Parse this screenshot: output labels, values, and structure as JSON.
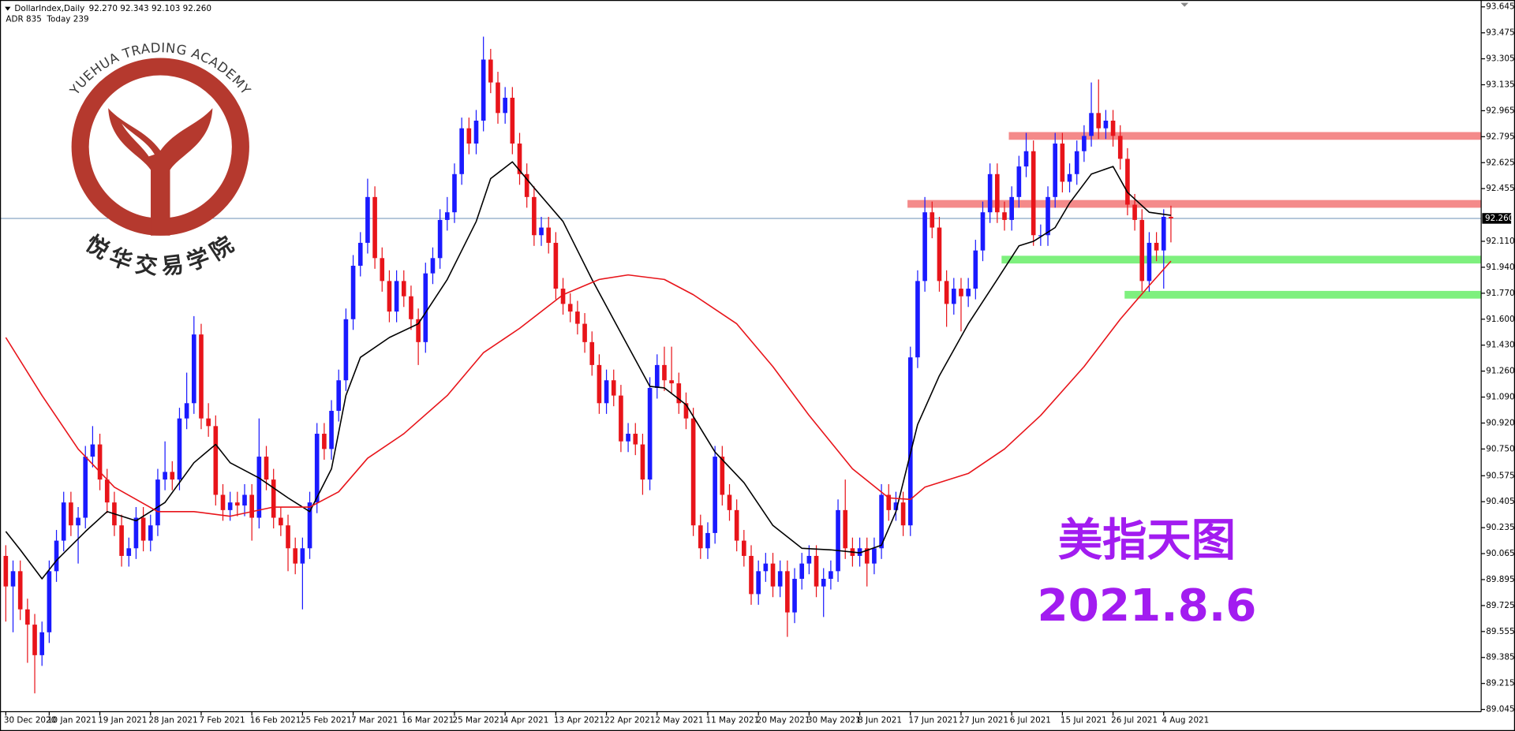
{
  "chart_data": {
    "type": "candlestick",
    "title": "DollarIndex,Daily",
    "ohlc_text": "92.270 92.343 92.103 92.260",
    "indicator_text": "ADR 835  Today 239",
    "annotations": [
      "美指天图",
      "2021.8.6"
    ],
    "bull_color": "#1a1aff",
    "bear_color": "#e8141a",
    "grid": false,
    "ylim": [
      89.03,
      93.69
    ],
    "yticks": [
      93.645,
      93.475,
      93.305,
      93.135,
      92.965,
      92.795,
      92.625,
      92.455,
      {
        "value": 92.11,
        "label": "92.110"
      },
      {
        "value": 91.94,
        "label": "91.940"
      },
      {
        "value": 91.77,
        "label": "91.770"
      },
      {
        "value": 91.6,
        "label": "91.600"
      },
      {
        "value": 91.43,
        "label": "91.430"
      },
      {
        "value": 91.26,
        "label": "91.260"
      },
      {
        "value": 91.09,
        "label": "91.090"
      },
      {
        "value": 90.92,
        "label": "90.920"
      },
      {
        "value": 90.75,
        "label": "90.750"
      },
      90.575,
      90.405,
      90.235,
      90.065,
      89.895,
      89.725,
      89.555,
      89.385,
      89.215,
      89.045
    ],
    "current_price": {
      "value": 92.26,
      "label": "92.260",
      "color": "#6b8fb5"
    },
    "categories": [
      "30 Dec 2020",
      null,
      null,
      null,
      null,
      null,
      "10 Jan 2021",
      null,
      null,
      null,
      null,
      null,
      null,
      "19 Jan 2021",
      null,
      null,
      null,
      null,
      null,
      null,
      "28 Jan 2021",
      null,
      null,
      null,
      null,
      null,
      null,
      "7 Feb 2021",
      null,
      null,
      null,
      null,
      null,
      null,
      "16 Feb 2021",
      null,
      null,
      null,
      null,
      null,
      null,
      "25 Feb 2021",
      null,
      null,
      null,
      null,
      null,
      null,
      "7 Mar 2021",
      null,
      null,
      null,
      null,
      null,
      null,
      "16 Mar 2021",
      null,
      null,
      null,
      null,
      null,
      null,
      "25 Mar 2021",
      null,
      null,
      null,
      null,
      null,
      null,
      "4 Apr 2021",
      null,
      null,
      null,
      null,
      null,
      null,
      "13 Apr 2021",
      null,
      null,
      null,
      null,
      null,
      null,
      "22 Apr 2021",
      null,
      null,
      null,
      null,
      null,
      null,
      "2 May 2021",
      null,
      null,
      null,
      null,
      null,
      null,
      "11 May 2021",
      null,
      null,
      null,
      null,
      null,
      null,
      "20 May 2021",
      null,
      null,
      null,
      null,
      null,
      null,
      "30 May 2021",
      null,
      null,
      null,
      null,
      null,
      null,
      "8 Jun 2021",
      null,
      null,
      null,
      null,
      null,
      null,
      "17 Jun 2021",
      null,
      null,
      null,
      null,
      null,
      null,
      "27 Jun 2021",
      null,
      null,
      null,
      null,
      null,
      null,
      "6 Jul 2021",
      null,
      null,
      null,
      null,
      null,
      null,
      "15 Jul 2021",
      null,
      null,
      null,
      null,
      null,
      null,
      "26 Jul 2021",
      null,
      null,
      null,
      null,
      null,
      null,
      "4 Aug 2021",
      null
    ],
    "candles": [
      [
        90.05,
        90.12,
        89.62,
        89.85
      ],
      [
        89.85,
        90.02,
        89.55,
        89.95
      ],
      [
        89.95,
        90.02,
        89.63,
        89.7
      ],
      [
        89.7,
        89.77,
        89.35,
        89.6
      ],
      [
        89.6,
        89.67,
        89.15,
        89.4
      ],
      [
        89.4,
        89.62,
        89.33,
        89.55
      ],
      [
        89.55,
        90.02,
        89.48,
        89.95
      ],
      [
        89.95,
        90.22,
        89.88,
        90.15
      ],
      [
        90.15,
        90.47,
        90.08,
        90.4
      ],
      [
        90.4,
        90.47,
        90.18,
        90.25
      ],
      [
        90.25,
        90.37,
        90.0,
        90.3
      ],
      [
        90.3,
        90.77,
        90.23,
        90.7
      ],
      [
        90.7,
        90.9,
        90.63,
        90.78
      ],
      [
        90.78,
        90.85,
        90.48,
        90.55
      ],
      [
        90.55,
        90.62,
        90.33,
        90.4
      ],
      [
        90.4,
        90.47,
        90.18,
        90.25
      ],
      [
        90.25,
        90.32,
        89.98,
        90.05
      ],
      [
        90.05,
        90.17,
        89.98,
        90.1
      ],
      [
        90.1,
        90.37,
        90.03,
        90.3
      ],
      [
        90.3,
        90.37,
        90.08,
        90.15
      ],
      [
        90.15,
        90.32,
        90.08,
        90.25
      ],
      [
        90.25,
        90.62,
        90.18,
        90.55
      ],
      [
        90.55,
        90.8,
        90.48,
        90.6
      ],
      [
        90.6,
        90.67,
        90.48,
        90.55
      ],
      [
        90.55,
        91.02,
        90.48,
        90.95
      ],
      [
        90.95,
        91.25,
        90.88,
        91.05
      ],
      [
        91.05,
        91.62,
        90.98,
        91.5
      ],
      [
        91.5,
        91.57,
        90.88,
        90.95
      ],
      [
        90.95,
        91.05,
        90.83,
        90.9
      ],
      [
        90.9,
        90.97,
        90.38,
        90.45
      ],
      [
        90.45,
        90.52,
        90.28,
        90.35
      ],
      [
        90.35,
        90.47,
        90.28,
        90.4
      ],
      [
        90.4,
        90.47,
        90.31,
        90.38
      ],
      [
        90.38,
        90.52,
        90.31,
        90.45
      ],
      [
        90.45,
        90.52,
        90.15,
        90.3
      ],
      [
        90.3,
        90.95,
        90.23,
        90.7
      ],
      [
        90.7,
        90.77,
        90.48,
        90.55
      ],
      [
        90.55,
        90.62,
        90.23,
        90.3
      ],
      [
        90.3,
        90.37,
        90.18,
        90.25
      ],
      [
        90.25,
        90.32,
        89.95,
        90.1
      ],
      [
        90.1,
        90.17,
        89.93,
        90.0
      ],
      [
        90.0,
        90.17,
        89.7,
        90.1
      ],
      [
        90.1,
        90.47,
        90.03,
        90.4
      ],
      [
        90.4,
        90.92,
        90.33,
        90.85
      ],
      [
        90.85,
        90.92,
        90.68,
        90.75
      ],
      [
        90.75,
        91.07,
        90.68,
        91.0
      ],
      [
        91.0,
        91.27,
        90.93,
        91.2
      ],
      [
        91.2,
        91.67,
        91.13,
        91.6
      ],
      [
        91.6,
        92.02,
        91.53,
        91.95
      ],
      [
        91.95,
        92.17,
        91.88,
        92.1
      ],
      [
        92.1,
        92.52,
        92.03,
        92.4
      ],
      [
        92.4,
        92.47,
        91.93,
        92.0
      ],
      [
        92.0,
        92.07,
        91.78,
        91.85
      ],
      [
        91.85,
        91.92,
        91.58,
        91.65
      ],
      [
        91.65,
        91.92,
        91.58,
        91.85
      ],
      [
        91.85,
        91.92,
        91.68,
        91.75
      ],
      [
        91.75,
        91.82,
        91.53,
        91.6
      ],
      [
        91.6,
        91.67,
        91.3,
        91.45
      ],
      [
        91.45,
        91.97,
        91.38,
        91.9
      ],
      [
        91.9,
        92.07,
        91.83,
        92.0
      ],
      [
        92.0,
        92.32,
        91.93,
        92.25
      ],
      [
        92.25,
        92.4,
        92.18,
        92.3
      ],
      [
        92.3,
        92.62,
        92.23,
        92.55
      ],
      [
        92.55,
        92.92,
        92.48,
        92.85
      ],
      [
        92.85,
        92.92,
        92.68,
        92.75
      ],
      [
        92.75,
        92.97,
        92.68,
        92.9
      ],
      [
        92.9,
        93.45,
        92.83,
        93.3
      ],
      [
        93.3,
        93.37,
        93.08,
        93.15
      ],
      [
        93.15,
        93.22,
        92.88,
        92.95
      ],
      [
        92.95,
        93.12,
        92.88,
        93.05
      ],
      [
        93.05,
        93.12,
        92.68,
        92.75
      ],
      [
        92.75,
        92.82,
        92.48,
        92.55
      ],
      [
        92.55,
        92.62,
        92.33,
        92.4
      ],
      [
        92.4,
        92.47,
        92.08,
        92.15
      ],
      [
        92.15,
        92.27,
        92.08,
        92.2
      ],
      [
        92.2,
        92.27,
        92.03,
        92.1
      ],
      [
        92.1,
        92.17,
        91.73,
        91.8
      ],
      [
        91.8,
        91.87,
        91.63,
        91.7
      ],
      [
        91.7,
        91.77,
        91.58,
        91.65
      ],
      [
        91.65,
        91.72,
        91.5,
        91.57
      ],
      [
        91.57,
        91.64,
        91.38,
        91.45
      ],
      [
        91.45,
        91.52,
        91.23,
        91.3
      ],
      [
        91.3,
        91.37,
        90.98,
        91.05
      ],
      [
        91.05,
        91.27,
        90.98,
        91.2
      ],
      [
        91.2,
        91.27,
        91.03,
        91.1
      ],
      [
        91.1,
        91.17,
        90.73,
        90.8
      ],
      [
        90.8,
        90.92,
        90.73,
        90.85
      ],
      [
        90.85,
        90.92,
        90.71,
        90.78
      ],
      [
        90.78,
        90.85,
        90.45,
        90.55
      ],
      [
        90.55,
        91.22,
        90.48,
        91.15
      ],
      [
        91.15,
        91.37,
        91.08,
        91.3
      ],
      [
        91.3,
        91.42,
        91.13,
        91.2
      ],
      [
        91.2,
        91.42,
        91.11,
        91.18
      ],
      [
        91.18,
        91.25,
        90.98,
        91.05
      ],
      [
        91.05,
        91.12,
        90.88,
        90.95
      ],
      [
        90.95,
        91.02,
        90.18,
        90.25
      ],
      [
        90.25,
        90.32,
        90.03,
        90.1
      ],
      [
        90.1,
        90.27,
        90.03,
        90.2
      ],
      [
        90.2,
        90.77,
        90.13,
        90.7
      ],
      [
        90.7,
        90.77,
        90.38,
        90.45
      ],
      [
        90.45,
        90.52,
        90.28,
        90.35
      ],
      [
        90.35,
        90.42,
        90.08,
        90.15
      ],
      [
        90.15,
        90.22,
        89.98,
        90.05
      ],
      [
        90.05,
        90.12,
        89.73,
        89.8
      ],
      [
        89.8,
        90.02,
        89.73,
        89.95
      ],
      [
        89.95,
        90.07,
        89.88,
        90.0
      ],
      [
        90.0,
        90.07,
        89.78,
        89.85
      ],
      [
        89.85,
        90.02,
        89.78,
        89.95
      ],
      [
        89.95,
        90.02,
        89.52,
        89.68
      ],
      [
        89.68,
        89.97,
        89.61,
        89.9
      ],
      [
        89.9,
        90.07,
        89.83,
        90.0
      ],
      [
        90.0,
        90.12,
        89.93,
        90.05
      ],
      [
        90.05,
        90.12,
        89.78,
        89.85
      ],
      [
        89.85,
        89.97,
        89.65,
        89.9
      ],
      [
        89.9,
        90.02,
        89.83,
        89.95
      ],
      [
        89.95,
        90.42,
        89.88,
        90.35
      ],
      [
        90.35,
        90.55,
        90.03,
        90.1
      ],
      [
        90.1,
        90.17,
        89.98,
        90.05
      ],
      [
        90.05,
        90.17,
        89.98,
        90.1
      ],
      [
        90.1,
        90.17,
        89.85,
        90.0
      ],
      [
        90.0,
        90.17,
        89.93,
        90.1
      ],
      [
        90.1,
        90.52,
        90.03,
        90.45
      ],
      [
        90.45,
        90.52,
        90.28,
        90.35
      ],
      [
        90.35,
        90.47,
        90.28,
        90.4
      ],
      [
        90.4,
        90.47,
        90.18,
        90.25
      ],
      [
        90.25,
        91.42,
        90.18,
        91.35
      ],
      [
        91.35,
        91.92,
        91.28,
        91.85
      ],
      [
        91.85,
        92.4,
        91.78,
        92.3
      ],
      [
        92.3,
        92.37,
        92.13,
        92.2
      ],
      [
        92.2,
        92.27,
        91.78,
        91.85
      ],
      [
        91.85,
        91.92,
        91.55,
        91.7
      ],
      [
        91.7,
        91.87,
        91.63,
        91.8
      ],
      [
        91.8,
        91.87,
        91.52,
        91.75
      ],
      [
        91.75,
        91.87,
        91.68,
        91.8
      ],
      [
        91.8,
        92.12,
        91.73,
        92.05
      ],
      [
        92.05,
        92.37,
        91.98,
        92.3
      ],
      [
        92.3,
        92.62,
        92.23,
        92.55
      ],
      [
        92.55,
        92.62,
        92.23,
        92.3
      ],
      [
        92.3,
        92.37,
        92.18,
        92.25
      ],
      [
        92.25,
        92.47,
        92.18,
        92.4
      ],
      [
        92.4,
        92.67,
        92.33,
        92.6
      ],
      [
        92.6,
        92.82,
        92.53,
        92.7
      ],
      [
        92.7,
        92.77,
        92.08,
        92.15
      ],
      [
        92.15,
        92.22,
        92.08,
        92.15
      ],
      [
        92.15,
        92.47,
        92.08,
        92.4
      ],
      [
        92.4,
        92.82,
        92.33,
        92.75
      ],
      [
        92.75,
        92.82,
        92.43,
        92.5
      ],
      [
        92.5,
        92.62,
        92.43,
        92.55
      ],
      [
        92.55,
        92.77,
        92.48,
        92.7
      ],
      [
        92.7,
        92.87,
        92.63,
        92.8
      ],
      [
        92.8,
        93.15,
        92.73,
        92.95
      ],
      [
        92.95,
        93.17,
        92.78,
        92.85
      ],
      [
        92.85,
        92.97,
        92.78,
        92.9
      ],
      [
        92.9,
        92.97,
        92.73,
        92.8
      ],
      [
        92.8,
        92.87,
        92.58,
        92.65
      ],
      [
        92.65,
        92.72,
        92.28,
        92.35
      ],
      [
        92.35,
        92.42,
        92.18,
        92.25
      ],
      [
        92.25,
        92.32,
        91.78,
        91.85
      ],
      [
        91.85,
        92.17,
        91.78,
        92.1
      ],
      [
        92.1,
        92.17,
        91.98,
        92.05
      ],
      [
        92.05,
        92.32,
        91.8,
        92.27
      ],
      [
        92.27,
        92.343,
        92.103,
        92.26
      ]
    ],
    "lines": [
      {
        "color": "#000000",
        "x": [
          0,
          2,
          5,
          7,
          11,
          14,
          18,
          22,
          26,
          29,
          31,
          35,
          39,
          42,
          45,
          47,
          49,
          53,
          57,
          61,
          65,
          67,
          70,
          73,
          77,
          81,
          85,
          89,
          91,
          94,
          98,
          102,
          106,
          110,
          114,
          118,
          121,
          123,
          126,
          129,
          133,
          137,
          140,
          142,
          145,
          147,
          150,
          153,
          155,
          158,
          161
        ],
        "values": [
          90.21,
          90.09,
          89.9,
          90.02,
          90.21,
          90.34,
          90.28,
          90.4,
          90.66,
          90.78,
          90.66,
          90.56,
          90.43,
          90.34,
          90.62,
          91.1,
          91.35,
          91.48,
          91.57,
          91.86,
          92.24,
          92.52,
          92.63,
          92.46,
          92.24,
          91.86,
          91.51,
          91.16,
          91.15,
          91.04,
          90.73,
          90.53,
          90.25,
          90.1,
          90.09,
          90.07,
          90.12,
          90.34,
          90.91,
          91.23,
          91.57,
          91.86,
          92.08,
          92.11,
          92.2,
          92.36,
          92.55,
          92.6,
          92.43,
          92.3,
          92.28
        ]
      },
      {
        "color": "#e8141a",
        "x": [
          0,
          5,
          10,
          15,
          21,
          26,
          31,
          37,
          42,
          46,
          50,
          55,
          61,
          66,
          71,
          77,
          82,
          86,
          91,
          95,
          101,
          106,
          111,
          117,
          122,
          125,
          127,
          133,
          138,
          143,
          149,
          154,
          158,
          161
        ],
        "values": [
          91.48,
          91.1,
          90.75,
          90.5,
          90.34,
          90.34,
          90.31,
          90.37,
          90.37,
          90.47,
          90.69,
          90.85,
          91.1,
          91.38,
          91.54,
          91.76,
          91.86,
          91.89,
          91.86,
          91.76,
          91.57,
          91.29,
          90.97,
          90.62,
          90.43,
          90.42,
          90.5,
          90.59,
          90.75,
          90.97,
          91.29,
          91.6,
          91.82,
          91.98
        ]
      }
    ],
    "zones": [
      {
        "value": 92.8,
        "x": 139,
        "color": "#f48a8a"
      },
      {
        "value": 92.355,
        "x": 125,
        "color": "#f48a8a"
      },
      {
        "value": 91.99,
        "x": 138,
        "color": "#7ef07e"
      },
      {
        "value": 91.76,
        "x": 155,
        "color": "#7ef07e"
      }
    ]
  },
  "logo": {
    "name": "YUEHUA TRADING ACADEMY",
    "chinese": "悦华交易学院"
  }
}
